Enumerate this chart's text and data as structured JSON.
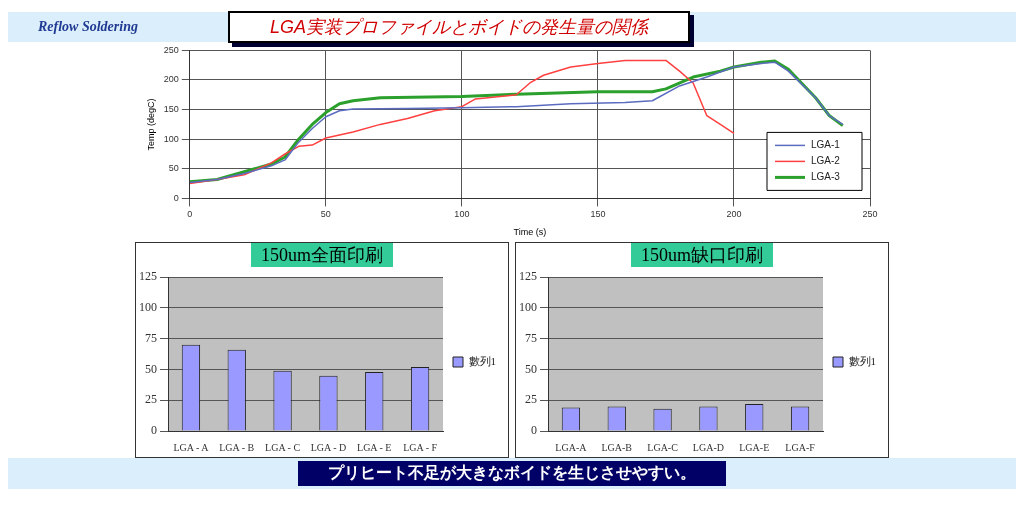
{
  "chart_data": [
    {
      "type": "line",
      "title": "LGA実装プロファイルとボイドの発生量の関係",
      "xlabel": "Time (s)",
      "ylabel": "Temp (degC)",
      "annotations": [
        "Reflow Soldering",
        "プリヒート不足が大きなボイドを生じさせやすい。"
      ],
      "xlim": [
        0,
        250
      ],
      "xticks": [
        0,
        50,
        100,
        150,
        200,
        250
      ],
      "ylim": [
        0,
        250
      ],
      "yticks": [
        0,
        50,
        100,
        150,
        200,
        250
      ],
      "grid": true,
      "legend": "bottom right",
      "marker": "none",
      "series": [
        {
          "name": "LGA-1",
          "color": "#5b6bbf",
          "x": [
            0,
            10,
            20,
            30,
            35,
            40,
            45,
            50,
            55,
            60,
            80,
            100,
            120,
            140,
            160,
            170,
            180,
            190,
            200,
            210,
            215,
            220,
            230,
            235,
            240
          ],
          "values": [
            27,
            32,
            42,
            55,
            65,
            95,
            118,
            138,
            148,
            151,
            152,
            153,
            155,
            160,
            162,
            165,
            190,
            205,
            222,
            228,
            230,
            215,
            170,
            140,
            125
          ]
        },
        {
          "name": "LGA-2",
          "color": "#ff4040",
          "x": [
            0,
            10,
            20,
            30,
            35,
            40,
            45,
            50,
            60,
            70,
            80,
            90,
            100,
            105,
            120,
            125,
            130,
            140,
            150,
            160,
            175,
            180,
            185,
            190,
            195,
            200
          ],
          "values": [
            25,
            32,
            40,
            60,
            75,
            88,
            90,
            102,
            112,
            125,
            135,
            148,
            155,
            168,
            175,
            195,
            208,
            222,
            228,
            233,
            233,
            215,
            195,
            140,
            125,
            110
          ]
        },
        {
          "name": "LGA-3",
          "color": "#2ca02c",
          "x": [
            0,
            10,
            20,
            30,
            35,
            40,
            45,
            50,
            55,
            60,
            70,
            100,
            120,
            135,
            150,
            170,
            175,
            185,
            195,
            200,
            210,
            215,
            220,
            230,
            235,
            240
          ],
          "values": [
            28,
            32,
            45,
            58,
            70,
            100,
            125,
            145,
            160,
            165,
            170,
            172,
            176,
            178,
            180,
            180,
            185,
            205,
            215,
            222,
            230,
            232,
            218,
            170,
            140,
            123
          ]
        }
      ]
    },
    {
      "type": "bar",
      "title": "150um全面印刷",
      "categories": [
        "LGA - A",
        "LGA - B",
        "LGA - C",
        "LGA - D",
        "LGA - E",
        "LGA - F"
      ],
      "ylim": [
        0,
        125
      ],
      "yticks": [
        0,
        25,
        50,
        75,
        100,
        125
      ],
      "grid": "y",
      "legend": "right",
      "series": [
        {
          "name": "數列1",
          "color": "#9999ff",
          "values": [
            70,
            66,
            49,
            45,
            48,
            52
          ]
        }
      ]
    },
    {
      "type": "bar",
      "title": "150um缺口印刷",
      "categories": [
        "LGA-A",
        "LGA-B",
        "LGA-C",
        "LGA-D",
        "LGA-E",
        "LGA-F"
      ],
      "ylim": [
        0,
        125
      ],
      "yticks": [
        0,
        25,
        50,
        75,
        100,
        125
      ],
      "grid": "y",
      "legend": "right",
      "series": [
        {
          "name": "數列1",
          "color": "#9999ff",
          "values": [
            19,
            20,
            18,
            20,
            22,
            20
          ]
        }
      ]
    }
  ]
}
